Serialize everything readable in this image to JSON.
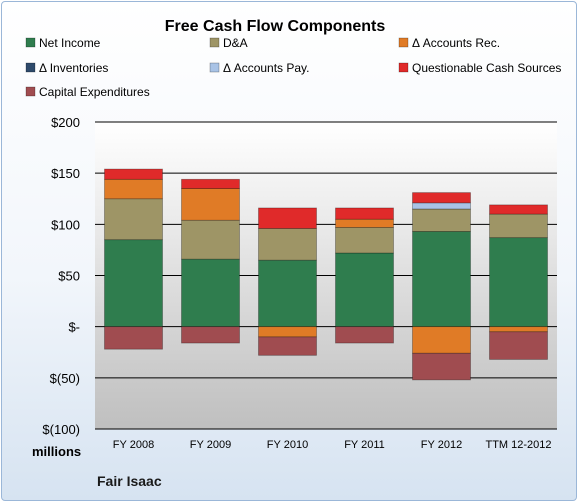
{
  "chart_data": {
    "type": "bar",
    "stacked": true,
    "title": "Free Cash Flow Components",
    "categories": [
      "FY 2008",
      "FY 2009",
      "FY 2010",
      "FY 2011",
      "FY 2012",
      "TTM 12-2012"
    ],
    "series": [
      {
        "name": "Net Income",
        "color": "#2f7d4e",
        "values": [
          85,
          66,
          65,
          72,
          93,
          87
        ]
      },
      {
        "name": "D&A",
        "color": "#9e9566",
        "values": [
          40,
          38,
          31,
          25,
          22,
          23
        ]
      },
      {
        "name": "Δ Accounts Rec.",
        "color": "#e07b26",
        "values": [
          19,
          31,
          -10,
          8,
          -26,
          -5
        ]
      },
      {
        "name": "Δ Inventories",
        "color": "#2e4a6b",
        "values": [
          0,
          0,
          0,
          0,
          0,
          0
        ]
      },
      {
        "name": "Δ Accounts Pay.",
        "color": "#a9c3e6",
        "values": [
          0,
          0,
          0,
          0,
          6,
          0
        ]
      },
      {
        "name": "Questionable Cash Sources",
        "color": "#e02a2a",
        "values": [
          10,
          9,
          20,
          11,
          10,
          9
        ]
      },
      {
        "name": "Capital Expenditures",
        "color": "#a04c50",
        "values": [
          -22,
          -16,
          -18,
          -16,
          -26,
          -27
        ]
      }
    ],
    "yticks": [
      200,
      150,
      100,
      50,
      0,
      -50,
      -100
    ],
    "ytick_labels": [
      "$200",
      "$150",
      "$100",
      "$50",
      "$-",
      "$(50)",
      "$(100)"
    ],
    "ylim": [
      -100,
      200
    ],
    "ylabel": "millions",
    "grid": true,
    "legend": "top"
  },
  "company": "Fair Isaac"
}
